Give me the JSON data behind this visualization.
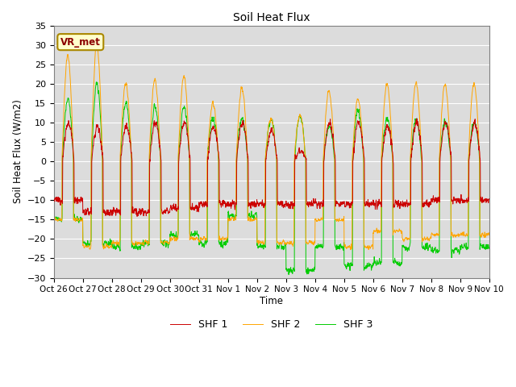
{
  "title": "Soil Heat Flux",
  "ylabel": "Soil Heat Flux (W/m2)",
  "xlabel": "Time",
  "ylim": [
    -30,
    35
  ],
  "yticks": [
    -30,
    -25,
    -20,
    -15,
    -10,
    -5,
    0,
    5,
    10,
    15,
    20,
    25,
    30,
    35
  ],
  "colors": {
    "SHF 1": "#cc0000",
    "SHF 2": "#ffa500",
    "SHF 3": "#00cc00"
  },
  "legend_label": "VR_met",
  "legend_box_facecolor": "#ffffcc",
  "legend_box_edgecolor": "#aa8800",
  "fig_bg_color": "#ffffff",
  "plot_bg_color": "#dcdcdc",
  "grid_color": "#ffffff",
  "n_days": 15,
  "xtick_labels": [
    "Oct 26",
    "Oct 27",
    "Oct 28",
    "Oct 29",
    "Oct 30",
    "Oct 31",
    "Nov 1",
    "Nov 2",
    "Nov 3",
    "Nov 4",
    "Nov 5",
    "Nov 6",
    "Nov 7",
    "Nov 8",
    "Nov 9",
    "Nov 10"
  ],
  "xtick_positions": [
    0,
    1,
    2,
    3,
    4,
    5,
    6,
    7,
    8,
    9,
    10,
    11,
    12,
    13,
    14,
    15
  ]
}
